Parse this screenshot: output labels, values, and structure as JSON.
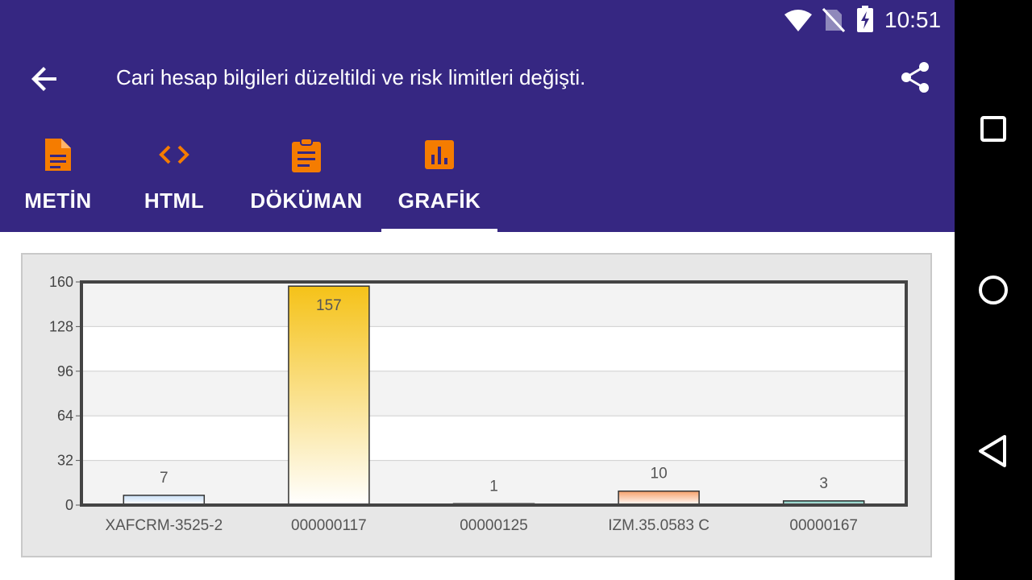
{
  "status_bar": {
    "time": "10:51",
    "icons": [
      "wifi-icon",
      "no-sim-icon",
      "battery-charging-icon"
    ]
  },
  "app_bar": {
    "title": "Cari hesap bilgileri düzeltildi ve risk limitleri değişti.",
    "back_icon": "arrow-back-icon",
    "share_icon": "share-icon"
  },
  "tabs": [
    {
      "label": "METİN",
      "icon": "document-icon",
      "selected": false
    },
    {
      "label": "HTML",
      "icon": "code-icon",
      "selected": false
    },
    {
      "label": "DÖKÜMAN",
      "icon": "clipboard-icon",
      "selected": false
    },
    {
      "label": "GRAFİK",
      "icon": "bar-chart-icon",
      "selected": true
    }
  ],
  "colors": {
    "primary": "#362782",
    "accent": "#f57c00",
    "indicator": "#ffffff"
  },
  "chart_data": {
    "type": "bar",
    "categories": [
      "XAFCRM-3525-2",
      "000000117",
      "00000125",
      "IZM.35.0583 C",
      "00000167"
    ],
    "values": [
      7,
      157,
      1,
      10,
      3
    ],
    "data_labels": [
      "7",
      "157",
      "1",
      "10",
      "3"
    ],
    "yticks": [
      "0",
      "32",
      "64",
      "96",
      "128",
      "160"
    ],
    "ylim": [
      0,
      160
    ],
    "bar_colors": [
      "#c9dff5",
      "#f5c218",
      "#666666",
      "#f7a06a",
      "#5dbfb0"
    ],
    "grid": true
  },
  "nav_bar": {
    "buttons": [
      "recents-icon",
      "home-icon",
      "back-icon"
    ]
  }
}
